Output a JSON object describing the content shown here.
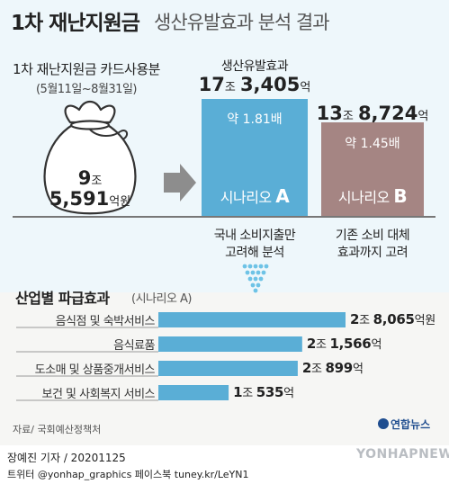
{
  "header": {
    "title": "1차 재난지원금",
    "subtitle": "생산유발효과 분석 결과"
  },
  "money_bag": {
    "label": "1차 재난지원금 카드사용분",
    "period": "(5월11일~8월31일)",
    "amount_line1_num": "9",
    "amount_line1_unit": "조",
    "amount_line2_num": "5,591",
    "amount_line2_unit": "억원"
  },
  "scenario_a": {
    "subtitle": "생산유발효과",
    "total_jo": "17",
    "total_jo_unit": "조",
    "total_eok": "3,405",
    "total_eok_unit": "억",
    "multiplier": "약 1.81배",
    "label": "시나리오",
    "letter": "A",
    "desc_line1": "국내 소비지출만",
    "desc_line2": "고려해 분석",
    "color": "#5aaed6"
  },
  "scenario_b": {
    "total_jo": "13",
    "total_jo_unit": "조",
    "total_eok": "8,724",
    "total_eok_unit": "억",
    "multiplier": "약 1.45배",
    "label": "시나리오",
    "letter": "B",
    "desc_line1": "기존 소비 대체",
    "desc_line2": "효과까지 고려",
    "color": "#a58583"
  },
  "industry_section": {
    "title": "산업별 파급효과",
    "note": "(시나리오 A)"
  },
  "chart_data": [
    {
      "type": "bar",
      "categories": [
        "시나리오 A",
        "시나리오 B"
      ],
      "values": [
        173405,
        138724
      ],
      "unit": "억원",
      "baseline": 95591,
      "value_labels": [
        "17조 3,405억",
        "13조 8,724억"
      ]
    },
    {
      "type": "bar",
      "orientation": "horizontal",
      "categories": [
        "음식점 및 숙박서비스",
        "음식료품",
        "도소매 및 상품중개서비스",
        "보건 및 사회복지 서비스"
      ],
      "values": [
        28065,
        21566,
        20899,
        10535
      ],
      "unit": "억원",
      "value_labels": [
        {
          "jo": "2",
          "jo_unit": "조",
          "eok": "8,065",
          "eok_unit": "억원"
        },
        {
          "jo": "2",
          "jo_unit": "조",
          "eok": "1,566",
          "eok_unit": "억"
        },
        {
          "jo": "2",
          "jo_unit": "조",
          "eok": "899",
          "eok_unit": "억"
        },
        {
          "jo": "1",
          "jo_unit": "조",
          "eok": "535",
          "eok_unit": "억"
        }
      ],
      "bar_color": "#5aaed6"
    }
  ],
  "footer": {
    "source": "자료/ 국회예산정책처",
    "logo": "연합뉴스",
    "reporter": "장예진 기자 / 20201125",
    "social": "트위터 @yonhap_graphics  페이스북 tuney.kr/LeYN1",
    "watermark": "YONHAPNEWS"
  }
}
